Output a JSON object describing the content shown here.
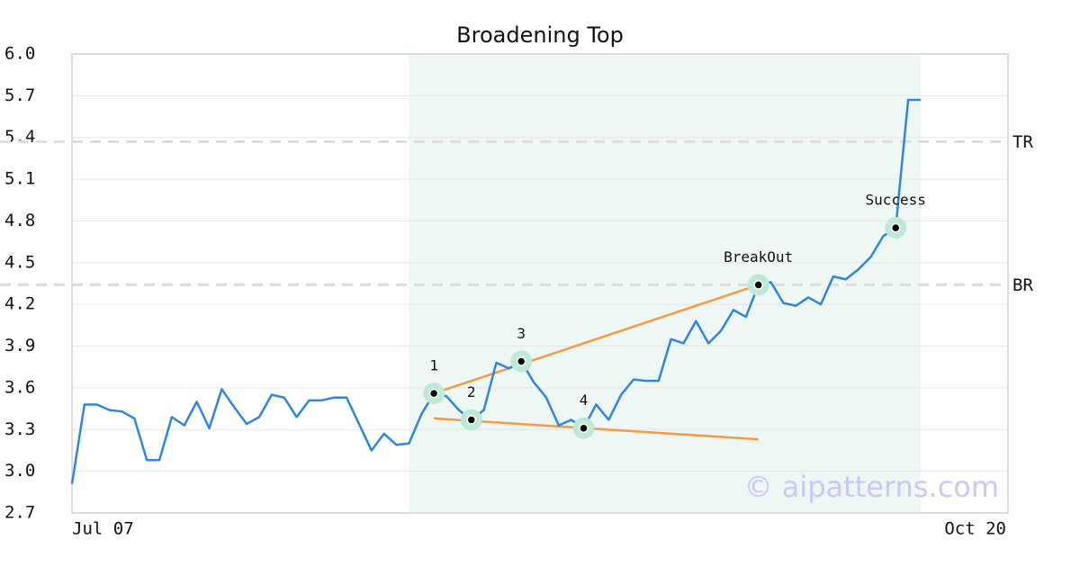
{
  "chart_data": {
    "type": "line",
    "title": "Broadening Top",
    "watermark": "© aipatterns.com",
    "color": "#2f86e0",
    "trend_color": "#f59a44",
    "highlight_color": "#eef7f3",
    "marker_color": "#bfe8d6",
    "grid": true,
    "xlim": [
      0,
      75
    ],
    "xticks": [
      {
        "value": 0,
        "label": "Jul 07"
      },
      {
        "value": 75,
        "label": "Oct 20"
      }
    ],
    "ylim": [
      2.7,
      6.0
    ],
    "yticks": [
      {
        "value": 2.7,
        "label": "2.7"
      },
      {
        "value": 3,
        "label": "3.0"
      },
      3.3,
      3.6,
      3.9,
      4.2,
      4.5,
      4.8,
      5.1,
      5.4,
      5.7,
      {
        "value": 6,
        "label": "6.0"
      }
    ],
    "x": [
      0,
      1,
      2,
      3,
      4,
      5,
      6,
      7,
      8,
      9,
      10,
      11,
      12,
      13,
      14,
      15,
      16,
      17,
      18,
      19,
      20,
      21,
      22,
      23,
      24,
      25,
      26,
      27,
      28,
      29,
      30,
      31,
      32,
      33,
      34,
      35,
      36,
      37,
      38,
      39,
      40,
      41,
      42,
      43,
      44,
      45,
      46,
      47,
      48,
      49,
      50,
      51,
      52,
      53,
      54,
      55,
      56,
      57,
      58,
      59,
      60,
      61,
      62,
      63,
      64,
      65,
      66,
      67,
      68
    ],
    "values": [
      2.91,
      3.48,
      3.48,
      3.44,
      3.43,
      3.38,
      3.08,
      3.08,
      3.39,
      3.33,
      3.5,
      3.31,
      3.59,
      3.46,
      3.34,
      3.39,
      3.55,
      3.53,
      3.39,
      3.51,
      3.51,
      3.53,
      3.53,
      3.34,
      3.15,
      3.27,
      3.19,
      3.2,
      3.41,
      3.56,
      3.54,
      3.44,
      3.37,
      3.44,
      3.78,
      3.74,
      3.79,
      3.64,
      3.53,
      3.33,
      3.37,
      3.31,
      3.48,
      3.37,
      3.55,
      3.66,
      3.65,
      3.65,
      3.95,
      3.92,
      4.08,
      3.92,
      4.01,
      4.16,
      4.11,
      4.34,
      4.36,
      4.21,
      4.19,
      4.25,
      4.2,
      4.4,
      4.38,
      4.45,
      4.54,
      4.69,
      4.75,
      5.67,
      5.67
    ],
    "highlight": {
      "x": [
        27,
        68
      ]
    },
    "hlines": [
      {
        "label": "TR",
        "value": 5.37
      },
      {
        "label": "BR",
        "value": 4.34
      }
    ],
    "trendlines": [
      {
        "x": [
          29,
          55
        ],
        "y": [
          3.56,
          4.34
        ]
      },
      {
        "x": [
          29,
          55
        ],
        "y": [
          3.38,
          3.23
        ]
      }
    ],
    "annotations": [
      {
        "text": "1",
        "x": 29,
        "y": 3.56
      },
      {
        "text": "2",
        "x": 32,
        "y": 3.37
      },
      {
        "text": "3",
        "x": 36,
        "y": 3.79
      },
      {
        "text": "4",
        "x": 41,
        "y": 3.31
      },
      {
        "text": "BreakOut",
        "x": 55,
        "y": 4.34
      },
      {
        "text": "Success",
        "x": 66,
        "y": 4.75
      }
    ]
  }
}
